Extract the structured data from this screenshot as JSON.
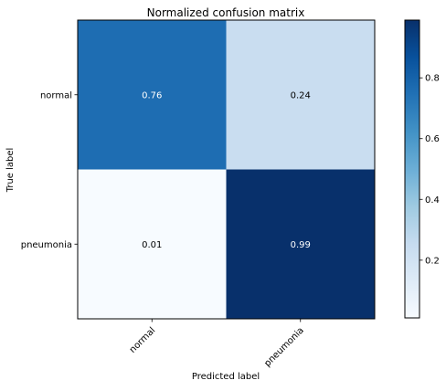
{
  "chart_data": {
    "type": "heatmap",
    "title": "Normalized confusion matrix",
    "xlabel": "Predicted label",
    "ylabel": "True label",
    "x_categories": [
      "normal",
      "pneumonia"
    ],
    "y_categories": [
      "normal",
      "pneumonia"
    ],
    "values": [
      [
        0.76,
        0.24
      ],
      [
        0.01,
        0.99
      ]
    ],
    "value_labels": [
      [
        "0.76",
        "0.24"
      ],
      [
        "0.01",
        "0.99"
      ]
    ],
    "colormap": "Blues",
    "colorbar": {
      "range": [
        0.01,
        0.99
      ],
      "ticks": [
        "0.2",
        "0.4",
        "0.6",
        "0.8"
      ]
    },
    "grid": false
  }
}
